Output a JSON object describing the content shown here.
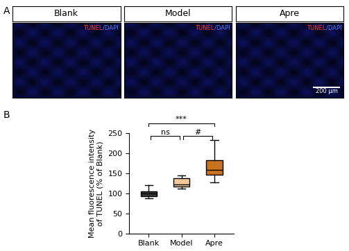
{
  "panel_labels": [
    "A",
    "B"
  ],
  "images": {
    "titles": [
      "Blank",
      "Model",
      "Apre"
    ],
    "stain_labels": [
      {
        "text": "TUNEL",
        "color": "#ff3b3b"
      },
      {
        "text": "/DAPI",
        "color": "#5a7bff"
      }
    ],
    "scale_bar": "200 μm"
  },
  "chart_data": {
    "type": "box",
    "categories": [
      "Blank",
      "Model",
      "Apre"
    ],
    "colors": [
      "#3a3a3a",
      "#f3c99b",
      "#c8731f"
    ],
    "stats": [
      {
        "whislo": 88,
        "q1": 93,
        "med": 100,
        "q3": 104,
        "whishi": 120
      },
      {
        "whislo": 111,
        "q1": 116,
        "med": 122,
        "q3": 138,
        "whishi": 145
      },
      {
        "whislo": 128,
        "q1": 147,
        "med": 158,
        "q3": 182,
        "whishi": 232
      }
    ],
    "y_label": "Mean fluorescence intensity\nof TUNEL (% of Blank)",
    "ylim": [
      0,
      250
    ],
    "yticks": [
      0,
      50,
      100,
      150,
      200,
      250
    ],
    "annotations": [
      {
        "from": "Blank",
        "to": "Model",
        "text": "ns"
      },
      {
        "from": "Model",
        "to": "Apre",
        "text": "#"
      },
      {
        "from": "Blank",
        "to": "Apre",
        "text": "***"
      }
    ]
  }
}
